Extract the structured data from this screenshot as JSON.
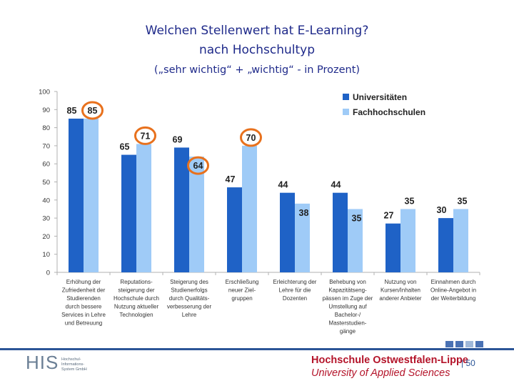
{
  "title": {
    "line1": "Welchen Stellenwert hat E-Learning?",
    "line2": "nach Hochschultyp",
    "line3": "(„sehr wichtig“ + „wichtig“ - in Prozent)"
  },
  "chart_data": {
    "type": "bar",
    "ylim": [
      0,
      100
    ],
    "yticks": [
      0,
      10,
      20,
      30,
      40,
      50,
      60,
      70,
      80,
      90,
      100
    ],
    "categories": [
      [
        "Erhöhung der",
        "Zufriedenheit der",
        "Studierenden",
        "durch bessere",
        "Services in Lehre",
        "und Betreuung"
      ],
      [
        "Reputations-",
        "steigerung der",
        "Hochschule durch",
        "Nutzung aktueller",
        "Technologien"
      ],
      [
        "Steigerung des",
        "Studienerfolgs",
        "durch Qualitäts-",
        "verbesserung der",
        "Lehre"
      ],
      [
        "Erschließung",
        "neuer Ziel-",
        "gruppen"
      ],
      [
        "Erleichterung der",
        "Lehre für die",
        "Dozenten"
      ],
      [
        "Behebung von",
        "Kapazitätseng-",
        "pässen im Zuge der",
        "Umstellung auf",
        "Bachelor-/",
        "Masterstudien-",
        "gänge"
      ],
      [
        "Nutzung von",
        "Kursen/Inhalten",
        "anderer Anbieter"
      ],
      [
        "Einnahmen durch",
        "Online-Angebot in",
        "der Weiterbildung"
      ]
    ],
    "series": [
      {
        "name": "Universitäten",
        "color": "#1f62c6",
        "values": [
          85,
          65,
          69,
          47,
          44,
          44,
          27,
          30
        ]
      },
      {
        "name": "Fachhochschulen",
        "color": "#9fcbf7",
        "values": [
          85,
          71,
          64,
          70,
          38,
          35,
          35,
          35
        ]
      }
    ],
    "value_labels": {
      "Universitäten": [
        "85",
        "65",
        "69",
        "47",
        "44",
        "44",
        "27",
        "30"
      ],
      "Fachhochschulen": [
        "85",
        "71",
        "64",
        "70",
        "38",
        "35",
        "35",
        "35"
      ]
    },
    "highlighted": [
      {
        "series": 1,
        "index": 0
      },
      {
        "series": 1,
        "index": 1
      },
      {
        "series": 1,
        "index": 2
      },
      {
        "series": 1,
        "index": 3
      }
    ],
    "highlight_color": "#e8711d",
    "legend_position": "top-right",
    "grid": false
  },
  "footer": {
    "logo_text": "HIS",
    "logo_sub": [
      "Hochschul-",
      "Informations-",
      "System GmbH"
    ],
    "institution": "Hochschule Ostwestfalen-Lippe",
    "institution_en": "University of Applied Sciences",
    "page_number": "| 50",
    "accent": "#2b5597",
    "brand_red": "#b4142a"
  }
}
